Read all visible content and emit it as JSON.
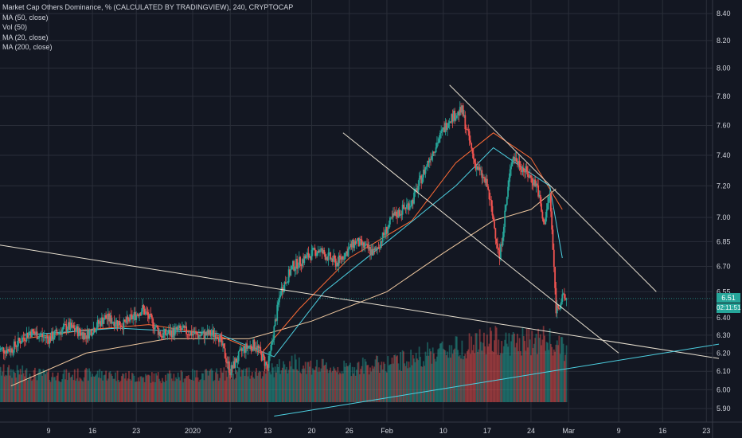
{
  "legend": {
    "title": "Market Cap Others Dominance, % (CALCULATED BY TRADINGVIEW), 240, CRYPTOCAP",
    "ma50": "MA (50, close)",
    "vol": "Vol (50)",
    "ma20": "MA (20, close)",
    "ma200": "MA (200, close)"
  },
  "price_label": {
    "value": "6.51",
    "countdown": "02:11:51"
  },
  "colors": {
    "background": "#131722",
    "grid": "#2a2e39",
    "up": "#26a69a",
    "down": "#ef5350",
    "ma20": "#ff6b35",
    "ma50": "#4dd0e1",
    "ma200": "#f0c9a0",
    "trendline": "#e8e0d0",
    "cyan_trend": "#4dd0e1",
    "text": "#d1d4dc"
  },
  "chart_data": {
    "type": "candlestick",
    "y_axis": {
      "ticks": [
        "8.40",
        "8.20",
        "8.00",
        "7.80",
        "7.60",
        "7.40",
        "7.20",
        "7.00",
        "6.85",
        "6.70",
        "6.55",
        "6.40",
        "6.30",
        "6.20",
        "6.10",
        "6.00",
        "5.90"
      ],
      "scale": "log"
    },
    "x_axis": {
      "ticks": [
        "9",
        "16",
        "23",
        "2020",
        "7",
        "13",
        "20",
        "26",
        "Feb",
        "10",
        "17",
        "24",
        "Mar",
        "9",
        "16",
        "23"
      ]
    },
    "price_series": [
      [
        "2019-12-03",
        6.22
      ],
      [
        "2019-12-06",
        6.32
      ],
      [
        "2019-12-09",
        6.28
      ],
      [
        "2019-12-12",
        6.35
      ],
      [
        "2019-12-15",
        6.3
      ],
      [
        "2019-12-18",
        6.4
      ],
      [
        "2019-12-21",
        6.36
      ],
      [
        "2019-12-24",
        6.45
      ],
      [
        "2019-12-27",
        6.3
      ],
      [
        "2019-12-30",
        6.33
      ],
      [
        "2020-01-02",
        6.3
      ],
      [
        "2020-01-05",
        6.31
      ],
      [
        "2020-01-07",
        6.1
      ],
      [
        "2020-01-09",
        6.22
      ],
      [
        "2020-01-11",
        6.25
      ],
      [
        "2020-01-13",
        6.12
      ],
      [
        "2020-01-15",
        6.55
      ],
      [
        "2020-01-17",
        6.7
      ],
      [
        "2020-01-19",
        6.75
      ],
      [
        "2020-01-21",
        6.8
      ],
      [
        "2020-01-24",
        6.72
      ],
      [
        "2020-01-27",
        6.85
      ],
      [
        "2020-01-30",
        6.78
      ],
      [
        "2020-02-02",
        7.0
      ],
      [
        "2020-02-05",
        7.1
      ],
      [
        "2020-02-08",
        7.4
      ],
      [
        "2020-02-11",
        7.65
      ],
      [
        "2020-02-13",
        7.7
      ],
      [
        "2020-02-15",
        7.35
      ],
      [
        "2020-02-17",
        7.2
      ],
      [
        "2020-02-19",
        6.75
      ],
      [
        "2020-02-21",
        7.4
      ],
      [
        "2020-02-23",
        7.3
      ],
      [
        "2020-02-25",
        7.2
      ],
      [
        "2020-02-26",
        6.95
      ],
      [
        "2020-02-27",
        7.15
      ],
      [
        "2020-02-28",
        6.45
      ],
      [
        "2020-02-29",
        6.51
      ]
    ],
    "volume_series": [
      [
        "2019-12-03",
        0.35
      ],
      [
        "2019-12-10",
        0.3
      ],
      [
        "2019-12-17",
        0.32
      ],
      [
        "2019-12-24",
        0.28
      ],
      [
        "2019-12-31",
        0.3
      ],
      [
        "2020-01-07",
        0.33
      ],
      [
        "2020-01-13",
        0.35
      ],
      [
        "2020-01-17",
        0.45
      ],
      [
        "2020-01-21",
        0.4
      ],
      [
        "2020-01-25",
        0.38
      ],
      [
        "2020-01-29",
        0.42
      ],
      [
        "2020-02-02",
        0.45
      ],
      [
        "2020-02-06",
        0.52
      ],
      [
        "2020-02-10",
        0.6
      ],
      [
        "2020-02-14",
        0.65
      ],
      [
        "2020-02-18",
        0.7
      ],
      [
        "2020-02-22",
        0.68
      ],
      [
        "2020-02-26",
        0.72
      ],
      [
        "2020-02-29",
        0.6
      ]
    ],
    "ma20_points": [
      [
        "2019-12-05",
        6.28
      ],
      [
        "2019-12-15",
        6.33
      ],
      [
        "2019-12-25",
        6.36
      ],
      [
        "2020-01-05",
        6.3
      ],
      [
        "2020-01-12",
        6.2
      ],
      [
        "2020-01-18",
        6.45
      ],
      [
        "2020-01-26",
        6.75
      ],
      [
        "2020-02-05",
        6.98
      ],
      [
        "2020-02-12",
        7.35
      ],
      [
        "2020-02-18",
        7.55
      ],
      [
        "2020-02-24",
        7.38
      ],
      [
        "2020-02-29",
        7.05
      ]
    ],
    "ma50_points": [
      [
        "2019-12-05",
        6.3
      ],
      [
        "2019-12-20",
        6.34
      ],
      [
        "2020-01-05",
        6.31
      ],
      [
        "2020-01-14",
        6.18
      ],
      [
        "2020-01-22",
        6.55
      ],
      [
        "2020-02-02",
        6.88
      ],
      [
        "2020-02-12",
        7.2
      ],
      [
        "2020-02-18",
        7.45
      ],
      [
        "2020-02-24",
        7.28
      ],
      [
        "2020-02-27",
        7.2
      ],
      [
        "2020-02-29",
        6.75
      ]
    ],
    "ma200_points": [
      [
        "2019-12-03",
        6.02
      ],
      [
        "2019-12-15",
        6.2
      ],
      [
        "2019-12-28",
        6.28
      ],
      [
        "2020-01-10",
        6.28
      ],
      [
        "2020-01-20",
        6.38
      ],
      [
        "2020-02-01",
        6.55
      ],
      [
        "2020-02-10",
        6.78
      ],
      [
        "2020-02-18",
        6.98
      ],
      [
        "2020-02-24",
        7.05
      ],
      [
        "2020-02-28",
        7.18
      ]
    ],
    "trendlines": [
      {
        "from": [
          "2019-12-01",
          6.83
        ],
        "to": [
          "2020-03-25",
          6.17
        ]
      },
      {
        "from": [
          "2020-01-25",
          7.55
        ],
        "to": [
          "2020-03-09",
          6.2
        ]
      },
      {
        "from": [
          "2020-02-11",
          7.88
        ],
        "to": [
          "2020-03-15",
          6.55
        ]
      },
      {
        "from": [
          "2020-01-14",
          5.86
        ],
        "to": [
          "2020-03-25",
          6.25
        ]
      }
    ]
  }
}
